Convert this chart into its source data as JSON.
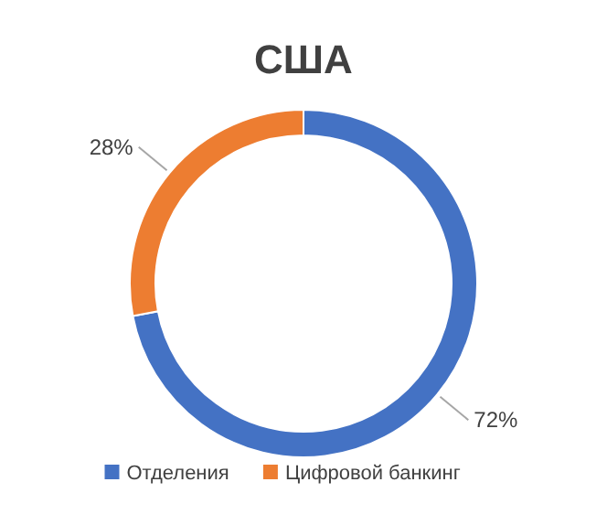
{
  "chart_data": {
    "type": "donut",
    "title": "США",
    "categories": [
      "Отделения",
      "Цифровой банкинг"
    ],
    "values": [
      72,
      28
    ],
    "colors": [
      "#4472c4",
      "#ed7d31"
    ],
    "value_labels": [
      "72%",
      "28%"
    ],
    "legend": "bottom"
  }
}
